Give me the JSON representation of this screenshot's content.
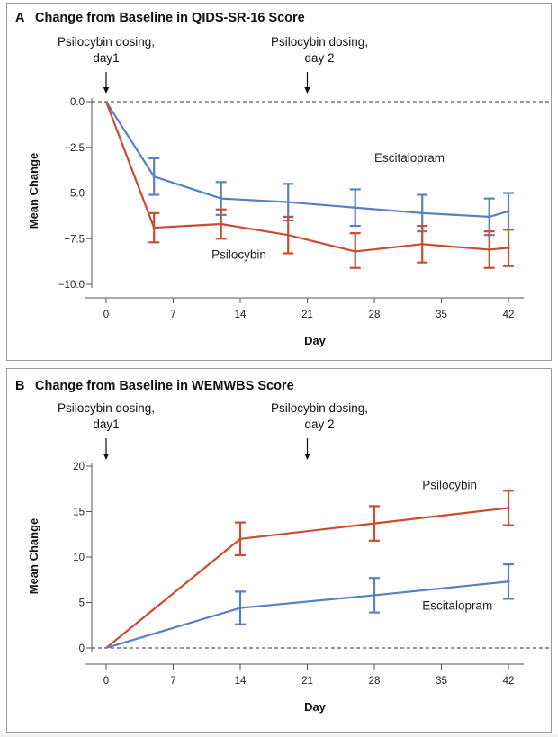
{
  "chart_data": [
    {
      "type": "line",
      "panel_letter": "A",
      "title": "Change from Baseline in QIDS-SR-16 Score",
      "xlabel": "Day",
      "ylabel": "Mean Change",
      "x_ticks": [
        0,
        7,
        14,
        21,
        28,
        35,
        42
      ],
      "y_ticks": [
        0.0,
        -2.5,
        -5.0,
        -7.5,
        -10.0
      ],
      "y_tick_labels": [
        "0.0",
        "−2.5",
        "−5.0",
        "−7.5",
        "−10.0"
      ],
      "xlim": [
        0,
        44
      ],
      "ylim": [
        -10.5,
        0.4
      ],
      "baseline_dashed": 0,
      "annotations": [
        {
          "lines": [
            "Psilocybin dosing,",
            "day1"
          ],
          "x": 0
        },
        {
          "lines": [
            "Psilocybin dosing,",
            "day 2"
          ],
          "x": 21
        }
      ],
      "series": [
        {
          "name": "Escitalopram",
          "color": "#5b7fc7",
          "points": [
            {
              "x": 0,
              "y": 0,
              "lo": null,
              "hi": null
            },
            {
              "x": 5,
              "y": -4.1,
              "lo": -5.1,
              "hi": -3.1
            },
            {
              "x": 12,
              "y": -5.3,
              "lo": -6.2,
              "hi": -4.4
            },
            {
              "x": 19,
              "y": -5.5,
              "lo": -6.5,
              "hi": -4.5
            },
            {
              "x": 26,
              "y": -5.8,
              "lo": -6.8,
              "hi": -4.8
            },
            {
              "x": 33,
              "y": -6.1,
              "lo": -7.1,
              "hi": -5.1
            },
            {
              "x": 40,
              "y": -6.3,
              "lo": -7.3,
              "hi": -5.3
            },
            {
              "x": 42,
              "y": -6.0,
              "lo": -7.0,
              "hi": -5.0
            }
          ]
        },
        {
          "name": "Psilocybin",
          "color": "#cc4b32",
          "points": [
            {
              "x": 0,
              "y": 0,
              "lo": null,
              "hi": null
            },
            {
              "x": 5,
              "y": -6.9,
              "lo": -7.7,
              "hi": -6.1
            },
            {
              "x": 12,
              "y": -6.7,
              "lo": -7.5,
              "hi": -5.9
            },
            {
              "x": 19,
              "y": -7.3,
              "lo": -8.3,
              "hi": -6.3
            },
            {
              "x": 26,
              "y": -8.2,
              "lo": -9.1,
              "hi": -7.2
            },
            {
              "x": 33,
              "y": -7.8,
              "lo": -8.8,
              "hi": -6.8
            },
            {
              "x": 40,
              "y": -8.1,
              "lo": -9.1,
              "hi": -7.1
            },
            {
              "x": 42,
              "y": -8.0,
              "lo": -9.0,
              "hi": -7.0
            }
          ]
        }
      ],
      "series_labels": [
        {
          "text": "Escitalopram",
          "anchor": [
            28,
            -3.3
          ]
        },
        {
          "text": "Psilocybin",
          "anchor": [
            11,
            -8.6
          ]
        }
      ]
    },
    {
      "type": "line",
      "panel_letter": "B",
      "title": "Change from Baseline in WEMWBS Score",
      "xlabel": "Day",
      "ylabel": "Mean Change",
      "x_ticks": [
        0,
        7,
        14,
        21,
        28,
        35,
        42
      ],
      "y_ticks": [
        0,
        5,
        10,
        15,
        20
      ],
      "y_tick_labels": [
        "0",
        "5",
        "10",
        "15",
        "20"
      ],
      "xlim": [
        0,
        44
      ],
      "ylim": [
        -1,
        21
      ],
      "baseline_dashed": 0,
      "annotations": [
        {
          "lines": [
            "Psilocybin dosing,",
            "day1"
          ],
          "x": 0
        },
        {
          "lines": [
            "Psilocybin dosing,",
            "day 2"
          ],
          "x": 21
        }
      ],
      "series": [
        {
          "name": "Psilocybin",
          "color": "#cc4b32",
          "points": [
            {
              "x": 0,
              "y": 0,
              "lo": null,
              "hi": null
            },
            {
              "x": 14,
              "y": 12.0,
              "lo": 10.2,
              "hi": 13.8
            },
            {
              "x": 28,
              "y": 13.7,
              "lo": 11.8,
              "hi": 15.6
            },
            {
              "x": 42,
              "y": 15.4,
              "lo": 13.5,
              "hi": 17.3
            }
          ]
        },
        {
          "name": "Escitalopram",
          "color": "#5b7fc7",
          "points": [
            {
              "x": 0,
              "y": 0,
              "lo": null,
              "hi": null
            },
            {
              "x": 14,
              "y": 4.4,
              "lo": 2.6,
              "hi": 6.2
            },
            {
              "x": 28,
              "y": 5.8,
              "lo": 3.9,
              "hi": 7.7
            },
            {
              "x": 42,
              "y": 7.3,
              "lo": 5.4,
              "hi": 9.2
            }
          ]
        }
      ],
      "series_labels": [
        {
          "text": "Psilocybin",
          "anchor": [
            33,
            17.5
          ]
        },
        {
          "text": "Escitalopram",
          "anchor": [
            33,
            4.2
          ]
        }
      ]
    }
  ]
}
